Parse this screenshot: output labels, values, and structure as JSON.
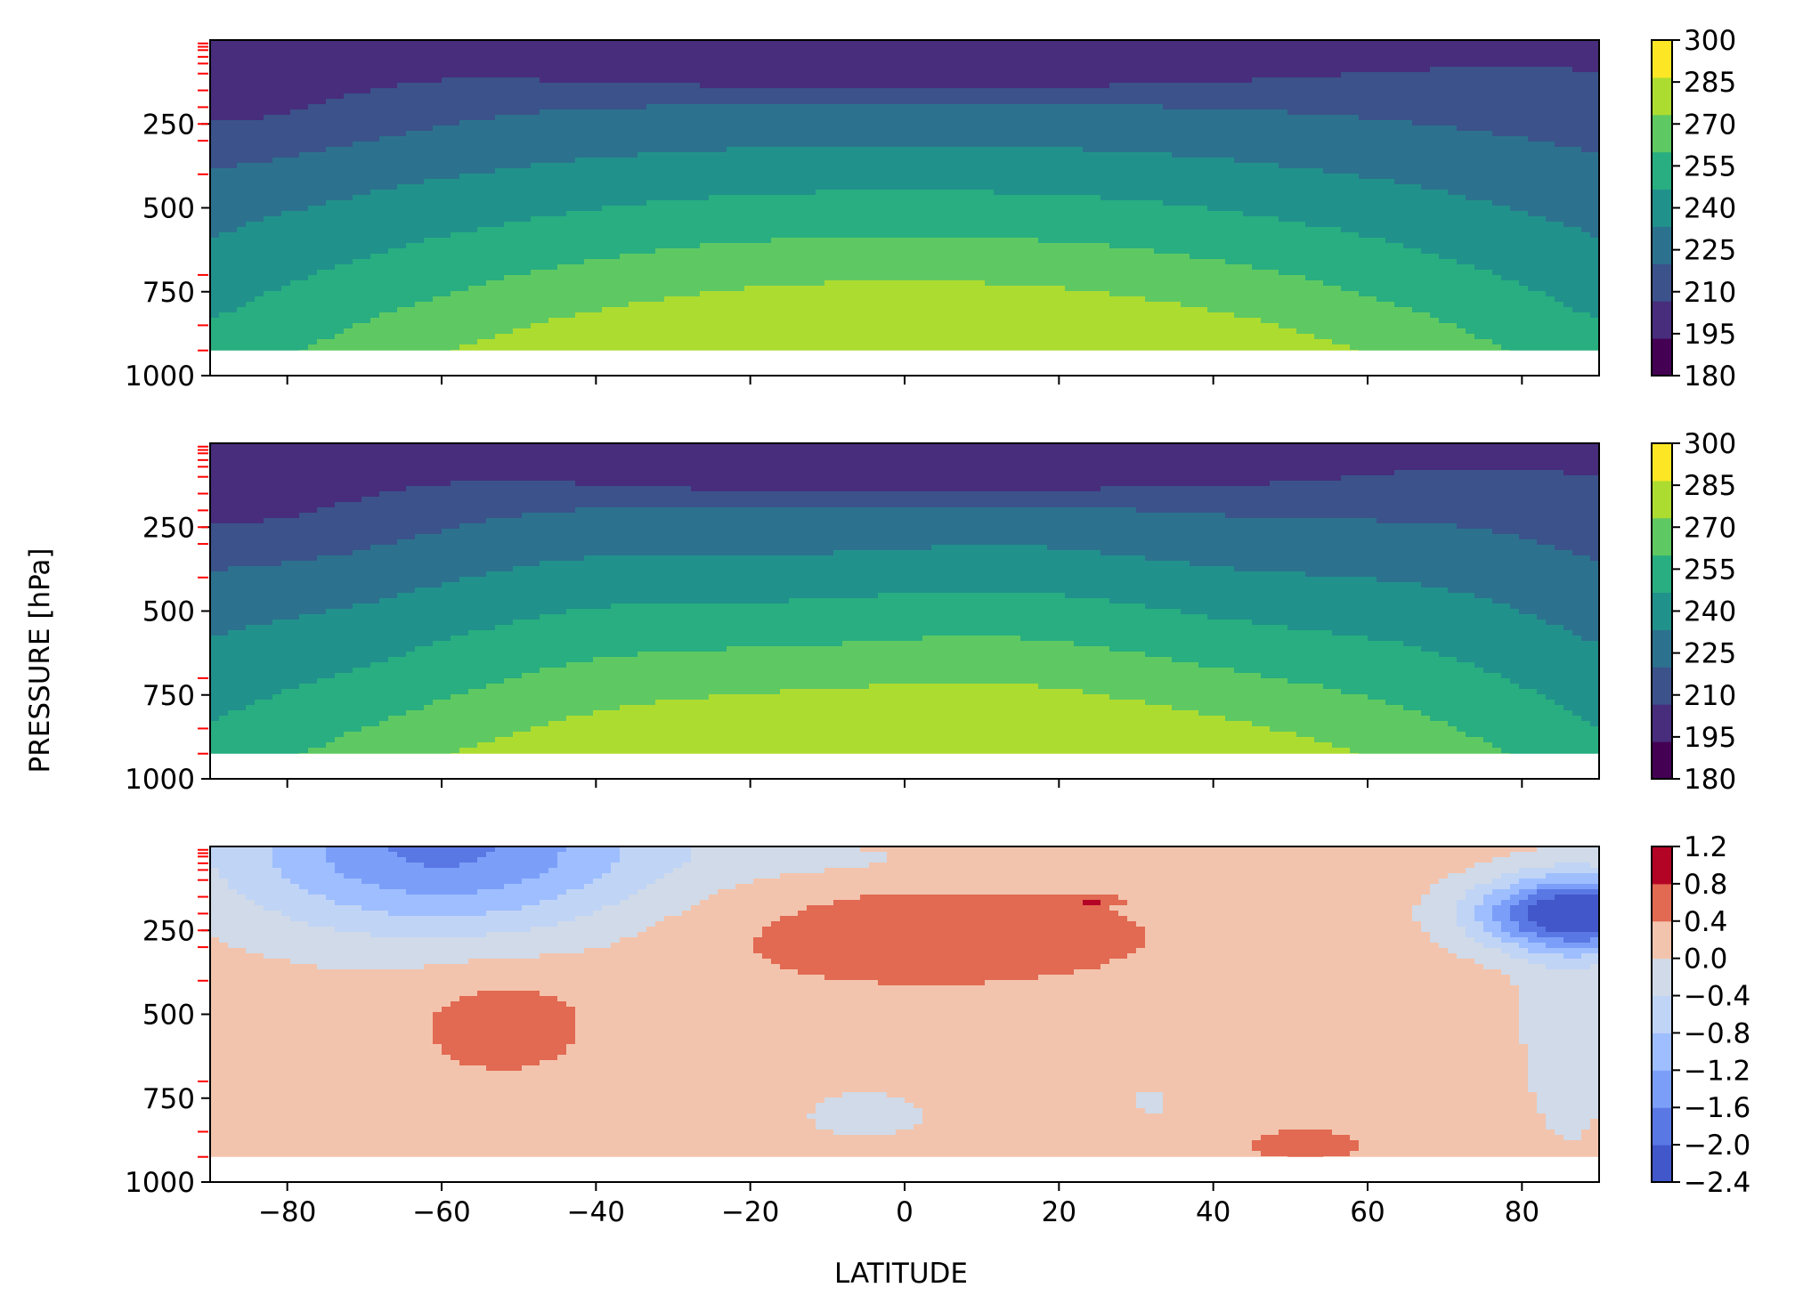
{
  "figure": {
    "ylabel": "PRESSURE [hPa]",
    "xlabel": "LATITUDE"
  },
  "chart_data": [
    {
      "type": "contourf",
      "panel": "top",
      "x_ticks": [
        -80,
        -60,
        -40,
        -20,
        0,
        20,
        40,
        60,
        80
      ],
      "x_tick_labels_visible": false,
      "xlim": [
        -90,
        90
      ],
      "y_ticks": [
        250,
        500,
        750,
        1000
      ],
      "y_tick_labels": [
        "250",
        "500",
        "750",
        "1000"
      ],
      "ylim": [
        1000,
        0
      ],
      "y_inverted": true,
      "data_top_pressure": 925,
      "levels": [
        180,
        195,
        210,
        225,
        240,
        255,
        270,
        285,
        300
      ],
      "colorbar_labels": [
        "300",
        "285",
        "270",
        "255",
        "240",
        "225",
        "210",
        "195",
        "180"
      ],
      "colormap": "viridis",
      "colors": [
        "#440154",
        "#472d7b",
        "#3b528b",
        "#2c728e",
        "#21918c",
        "#28ae80",
        "#5ec962",
        "#addc30",
        "#fde725"
      ],
      "model_levels_marked": [
        10,
        20,
        30,
        50,
        70,
        100,
        150,
        200,
        250,
        300,
        400,
        700,
        850,
        925
      ],
      "model_level_color": "#ff0000"
    },
    {
      "type": "contourf",
      "panel": "middle",
      "x_ticks": [
        -80,
        -60,
        -40,
        -20,
        0,
        20,
        40,
        60,
        80
      ],
      "x_tick_labels_visible": false,
      "xlim": [
        -90,
        90
      ],
      "y_ticks": [
        250,
        500,
        750,
        1000
      ],
      "y_tick_labels": [
        "250",
        "500",
        "750",
        "1000"
      ],
      "ylim": [
        1000,
        0
      ],
      "y_inverted": true,
      "data_top_pressure": 925,
      "levels": [
        180,
        195,
        210,
        225,
        240,
        255,
        270,
        285,
        300
      ],
      "colorbar_labels": [
        "300",
        "285",
        "270",
        "255",
        "240",
        "225",
        "210",
        "195",
        "180"
      ],
      "colormap": "viridis",
      "colors": [
        "#440154",
        "#472d7b",
        "#3b528b",
        "#2c728e",
        "#21918c",
        "#28ae80",
        "#5ec962",
        "#addc30",
        "#fde725"
      ],
      "model_levels_marked": [
        10,
        20,
        30,
        50,
        70,
        100,
        150,
        200,
        250,
        300,
        400,
        700,
        850,
        925
      ],
      "model_level_color": "#ff0000"
    },
    {
      "type": "contourf",
      "panel": "bottom",
      "x_ticks": [
        -80,
        -60,
        -40,
        -20,
        0,
        20,
        40,
        60,
        80
      ],
      "x_tick_labels": [
        "−80",
        "−60",
        "−40",
        "−20",
        "0",
        "20",
        "40",
        "60",
        "80"
      ],
      "xlim": [
        -90,
        90
      ],
      "y_ticks": [
        250,
        500,
        750,
        1000
      ],
      "y_tick_labels": [
        "250",
        "500",
        "750",
        "1000"
      ],
      "ylim": [
        1000,
        0
      ],
      "y_inverted": true,
      "data_top_pressure": 925,
      "levels": [
        -2.4,
        -2.0,
        -1.6,
        -1.2,
        -0.8,
        -0.4,
        0.0,
        0.4,
        0.8,
        1.2
      ],
      "colorbar_labels": [
        "1.2",
        "0.8",
        "0.4",
        "0.0",
        "−0.4",
        "−0.8",
        "−1.2",
        "−1.6",
        "−2.0",
        "−2.4"
      ],
      "colormap": "coolwarm",
      "colors": [
        "#4257c9",
        "#5a78e4",
        "#7b9ff9",
        "#9ebeff",
        "#c0d4f5",
        "#d0dae8",
        "#f3c4ad",
        "#e26952",
        "#b40426"
      ],
      "model_levels_marked": [
        10,
        20,
        30,
        50,
        70,
        100,
        150,
        200,
        250,
        300,
        400,
        700,
        850,
        925
      ],
      "model_level_color": "#ff0000"
    }
  ]
}
